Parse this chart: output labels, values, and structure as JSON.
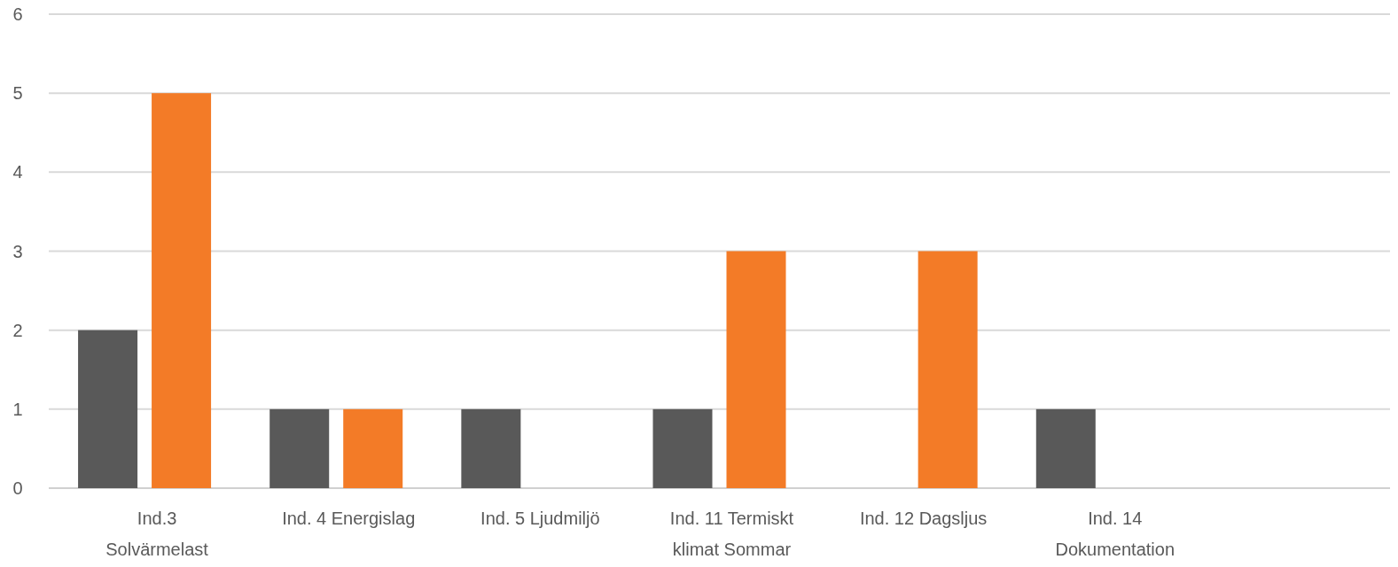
{
  "chart_data": {
    "type": "bar",
    "categories": [
      "Ind.3\nSolvärmelast",
      "Ind. 4 Energislag",
      "Ind. 5 Ljudmiljö",
      "Ind. 11 Termiskt\nklimat Sommar",
      "Ind. 12 Dagsljus",
      "Ind. 14\nDokumentation",
      null
    ],
    "series": [
      {
        "color": "#595959",
        "values": [
          2,
          1,
          1,
          1,
          null,
          1,
          null
        ]
      },
      {
        "color": "#f37b27",
        "values": [
          5,
          1,
          null,
          3,
          3,
          null,
          null
        ]
      }
    ],
    "ylim": [
      0,
      6
    ],
    "yticks": [
      0,
      1,
      2,
      3,
      4,
      5,
      6
    ],
    "grid": true
  }
}
